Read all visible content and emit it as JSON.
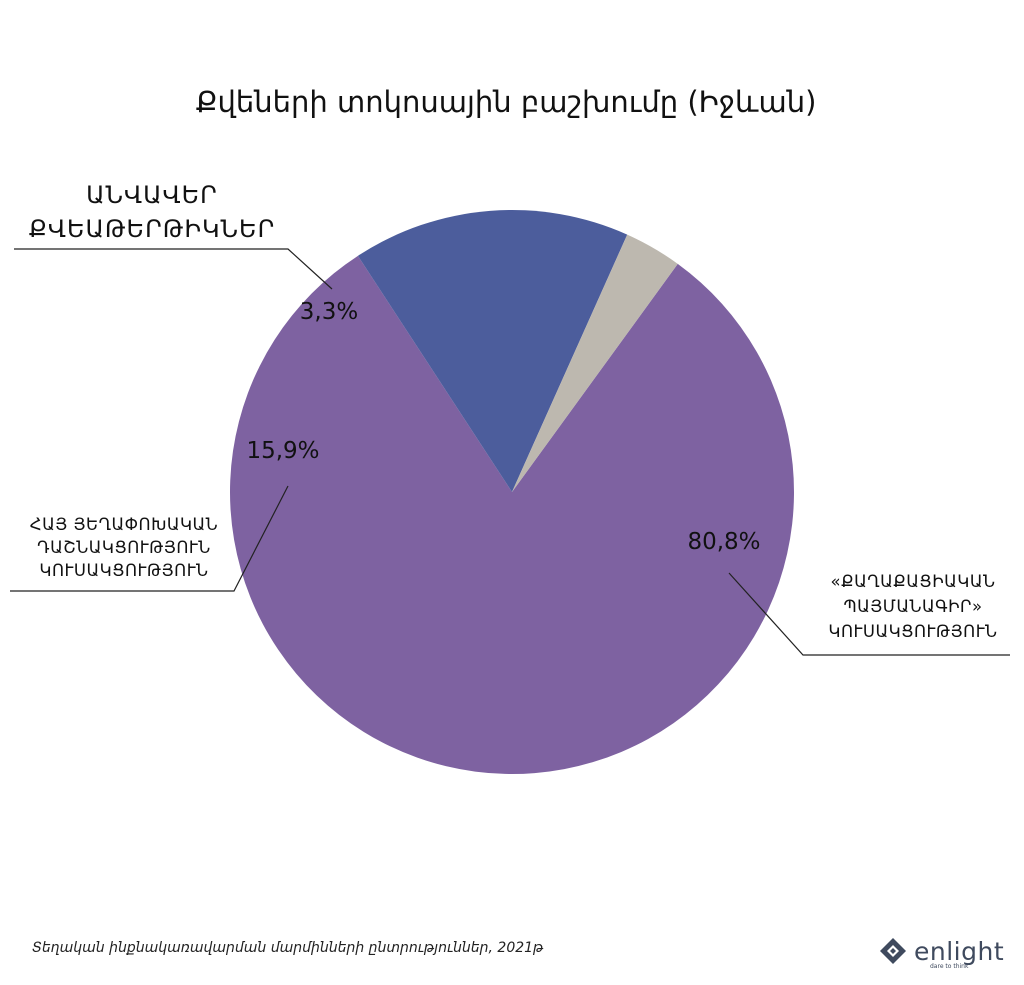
{
  "chart_data": {
    "type": "pie",
    "title": "Քվեների տոկոսային բաշխումը (Իջևան)",
    "slices": [
      {
        "label": [
          "«ՔԱՂԱՔԱՑԻԱԿԱՆ",
          "ՊԱՅՄԱՆԱԳԻՐ»",
          "ԿՈՒՍԱԿՑՈՒԹՅՈՒՆ"
        ],
        "value": 80.8,
        "value_label": "80,8%",
        "color": "#7e62a1"
      },
      {
        "label": [
          "ՀԱՅ ՅԵՂԱՓՈԽԱԿԱՆ",
          "ԴԱՇՆԱԿՑՈՒԹՅՈՒՆ",
          "ԿՈՒՍԱԿՑՈՒԹՅՈՒՆ"
        ],
        "value": 15.9,
        "value_label": "15,9%",
        "color": "#4c5d9c"
      },
      {
        "label": [
          "ԱՆՎԱՎԵՐ",
          "ՔՎԵԱԹԵՐԹԻԿՆԵՐ"
        ],
        "value": 3.3,
        "value_label": "3,3%",
        "color": "#bdb8af"
      }
    ]
  },
  "footer": {
    "source": "Տեղական ինքնակառավարման մարմինների ընտրություններ, 2021թ"
  },
  "logo": {
    "name": "enlight",
    "tagline": "dare to think"
  }
}
